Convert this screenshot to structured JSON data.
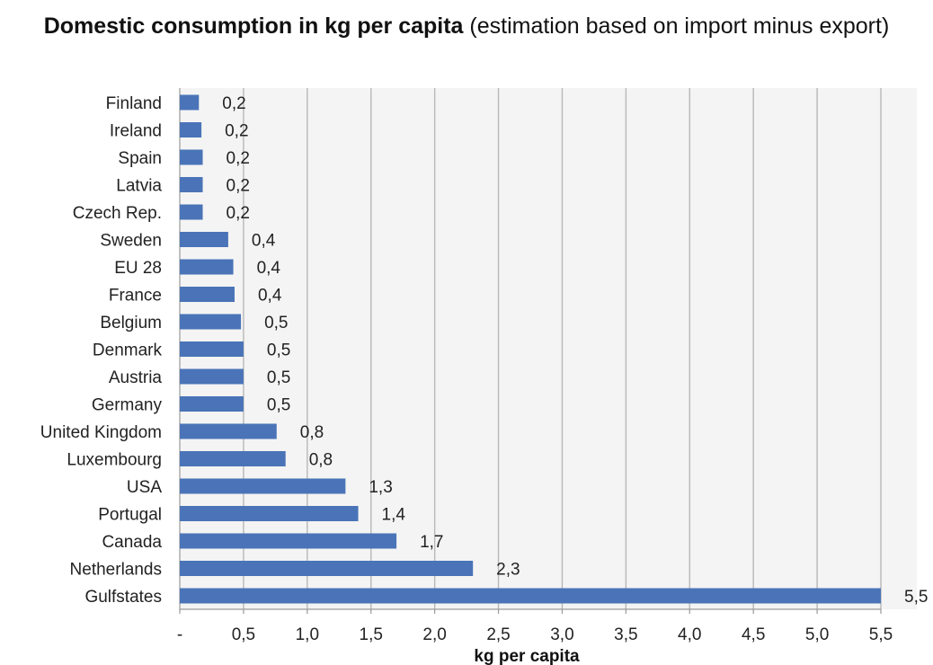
{
  "chart_data": {
    "type": "bar",
    "orientation": "horizontal",
    "title": "Domestic consumption in kg per capita",
    "subtitle": "(estimation based on import minus export)",
    "xlabel": "kg per capita",
    "ylabel": "",
    "categories": [
      "Finland",
      "Ireland",
      "Spain",
      "Latvia",
      "Czech Rep.",
      "Sweden",
      "EU 28",
      "France",
      "Belgium",
      "Denmark",
      "Austria",
      "Germany",
      "United Kingdom",
      "Luxembourg",
      "USA",
      "Portugal",
      "Canada",
      "Netherlands",
      "Gulfstates"
    ],
    "values": [
      0.15,
      0.17,
      0.18,
      0.18,
      0.18,
      0.38,
      0.42,
      0.43,
      0.48,
      0.5,
      0.5,
      0.5,
      0.76,
      0.83,
      1.3,
      1.4,
      1.7,
      2.3,
      5.5
    ],
    "data_labels": [
      "0,2",
      "0,2",
      "0,2",
      "0,2",
      "0,2",
      "0,4",
      "0,4",
      "0,4",
      "0,5",
      "0,5",
      "0,5",
      "0,5",
      "0,8",
      "0,8",
      "1,3",
      "1,4",
      "1,7",
      "2,3",
      "5,5"
    ],
    "xlim": [
      0,
      5.5
    ],
    "xticks": [
      0,
      0.5,
      1.0,
      1.5,
      2.0,
      2.5,
      3.0,
      3.5,
      4.0,
      4.5,
      5.0,
      5.5
    ],
    "xtick_labels": [
      "-",
      "0,5",
      "1,0",
      "1,5",
      "2,0",
      "2,5",
      "3,0",
      "3,5",
      "4,0",
      "4,5",
      "5,0",
      "5,5"
    ],
    "grid": true,
    "legend": "none",
    "bar_color": "#4a74b7"
  }
}
